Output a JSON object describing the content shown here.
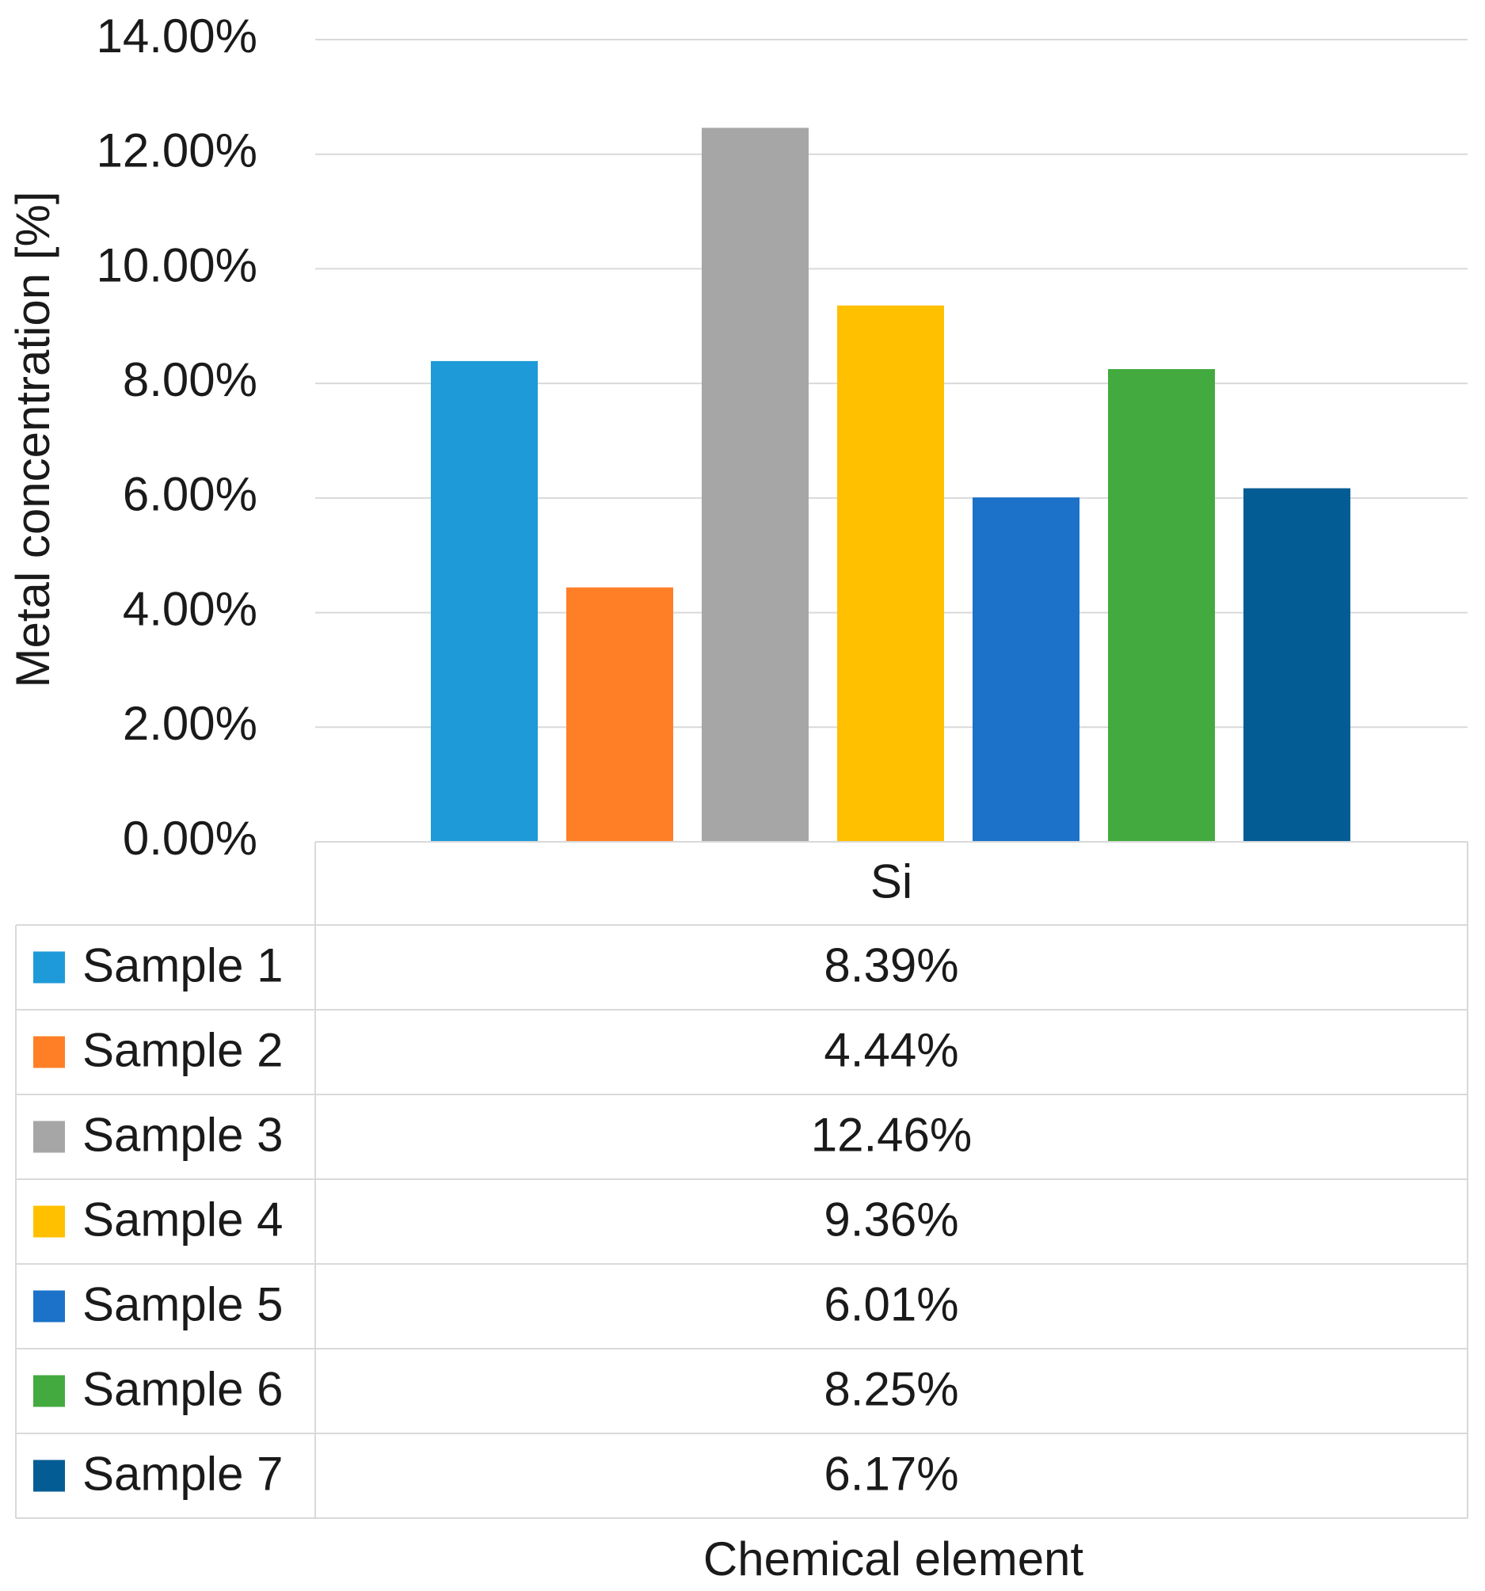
{
  "chart_data": {
    "type": "bar",
    "categories": [
      "Si"
    ],
    "series": [
      {
        "name": "Sample 1",
        "values": [
          8.39
        ],
        "color": "#1E9AD8",
        "label": "8.39%"
      },
      {
        "name": "Sample 2",
        "values": [
          4.44
        ],
        "color": "#FF7F27",
        "label": "4.44%"
      },
      {
        "name": "Sample 3",
        "values": [
          12.46
        ],
        "color": "#A6A6A6",
        "label": "12.46%"
      },
      {
        "name": "Sample 4",
        "values": [
          9.36
        ],
        "color": "#FFC000",
        "label": "9.36%"
      },
      {
        "name": "Sample 5",
        "values": [
          6.01
        ],
        "color": "#1B72C8",
        "label": "6.01%"
      },
      {
        "name": "Sample 6",
        "values": [
          8.25
        ],
        "color": "#43AA3F",
        "label": "8.25%"
      },
      {
        "name": "Sample 7",
        "values": [
          6.17
        ],
        "color": "#045C94",
        "label": "6.17%"
      }
    ],
    "ylim": [
      0,
      14
    ],
    "yticks": [
      0,
      2,
      4,
      6,
      8,
      10,
      12,
      14
    ],
    "ytick_labels": [
      "0.00%",
      "2.00%",
      "4.00%",
      "6.00%",
      "8.00%",
      "10.00%",
      "12.00%",
      "14.00%"
    ],
    "xlabel": "Chemical element",
    "ylabel": "Metal concentration [%]",
    "grid": true,
    "legend": "data table"
  }
}
